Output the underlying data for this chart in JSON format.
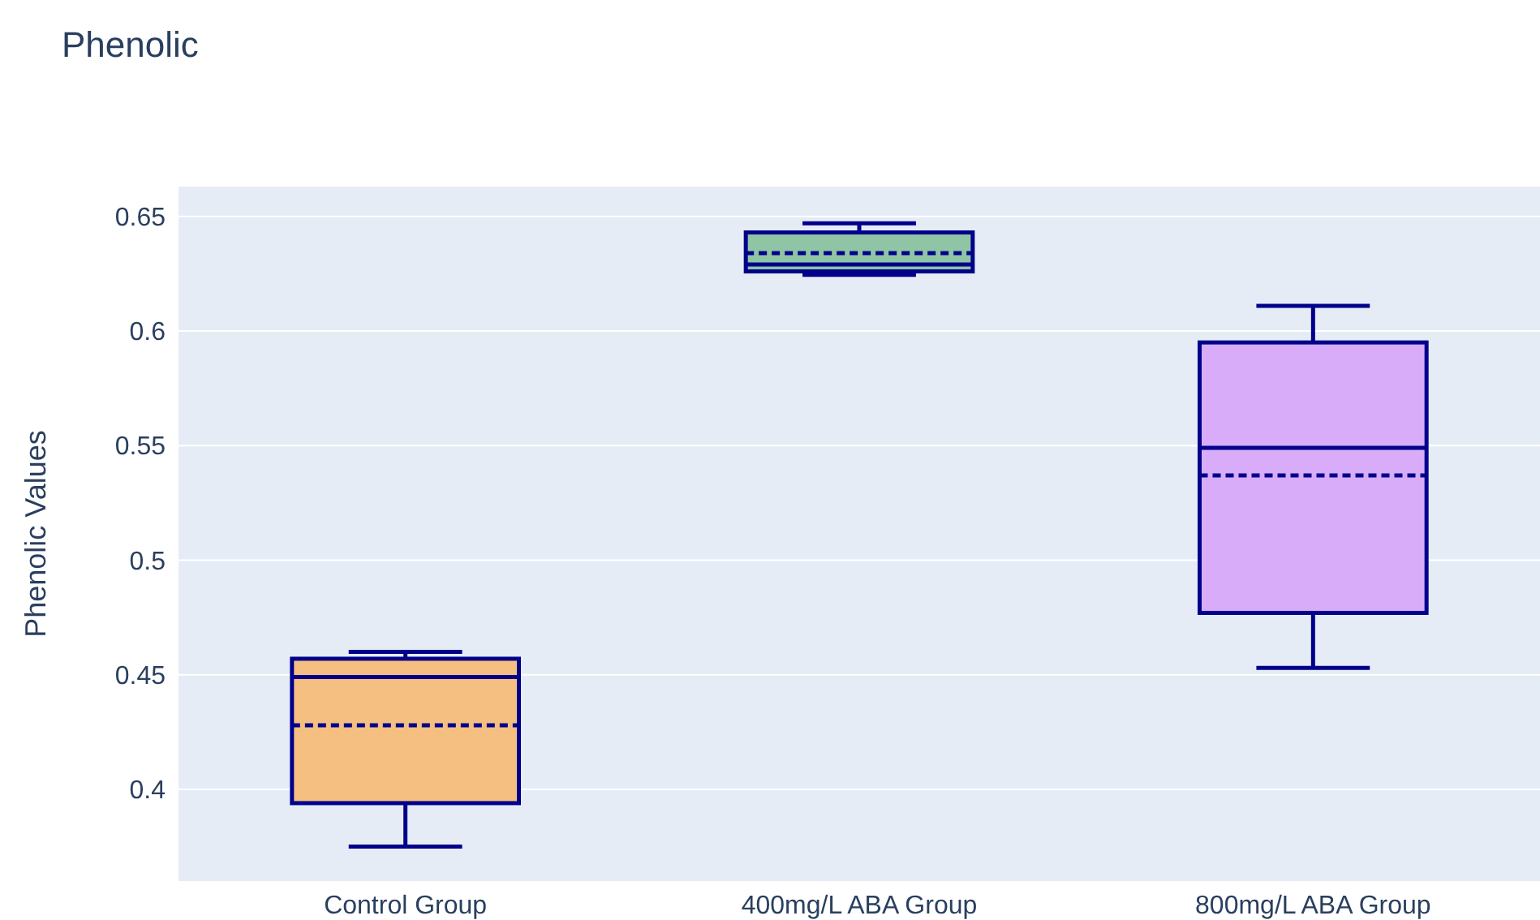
{
  "chart_data": {
    "type": "box",
    "title": "Phenolic",
    "ylabel": "Phenolic Values",
    "categories": [
      "Control Group",
      "400mg/L ABA Group",
      "800mg/L ABA Group"
    ],
    "boxes": [
      {
        "low": 0.375,
        "q1": 0.394,
        "median": 0.449,
        "q3": 0.457,
        "high": 0.46,
        "mean": 0.428
      },
      {
        "low": 0.6245,
        "q1": 0.626,
        "median": 0.629,
        "q3": 0.643,
        "high": 0.647,
        "mean": 0.634
      },
      {
        "low": 0.453,
        "q1": 0.477,
        "median": 0.549,
        "q3": 0.595,
        "high": 0.611,
        "mean": 0.537
      }
    ],
    "colors": [
      "#f4bf80",
      "#8fc4a4",
      "#d9acf9"
    ],
    "ylim": [
      0.36,
      0.663
    ],
    "yticks": [
      0.4,
      0.45,
      0.5,
      0.55,
      0.6,
      0.65
    ],
    "grid": "y"
  }
}
